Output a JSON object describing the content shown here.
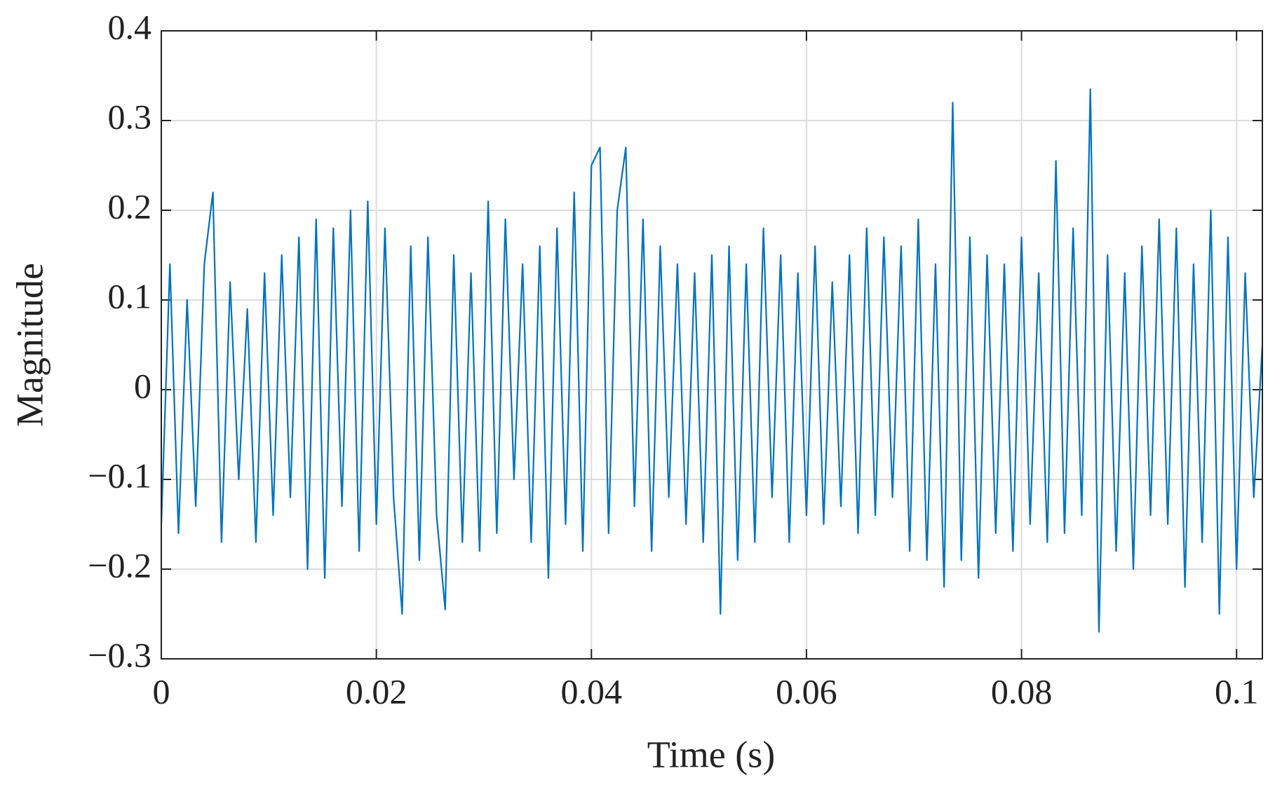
{
  "chart_data": {
    "type": "line",
    "xlabel": "Time (s)",
    "ylabel": "Magnitude",
    "x": [
      0,
      0.0008,
      0.0016,
      0.0024,
      0.0032,
      0.004,
      0.0048,
      0.0056,
      0.0064,
      0.0072,
      0.008,
      0.0088,
      0.0096,
      0.0104,
      0.0112,
      0.012,
      0.0128,
      0.0136,
      0.0144,
      0.0152,
      0.016,
      0.0168,
      0.0176,
      0.0184,
      0.0192,
      0.02,
      0.0208,
      0.0216,
      0.0224,
      0.0232,
      0.024,
      0.0248,
      0.0256,
      0.0264,
      0.0272,
      0.028,
      0.0288,
      0.0296,
      0.0304,
      0.0312,
      0.032,
      0.0328,
      0.0336,
      0.0344,
      0.0352,
      0.036,
      0.0368,
      0.0376,
      0.0384,
      0.0392,
      0.04,
      0.0408,
      0.0416,
      0.0424,
      0.0432,
      0.044,
      0.0448,
      0.0456,
      0.0464,
      0.0472,
      0.048,
      0.0488,
      0.0496,
      0.0504,
      0.0512,
      0.052,
      0.0528,
      0.0536,
      0.0544,
      0.0552,
      0.056,
      0.0568,
      0.0576,
      0.0584,
      0.0592,
      0.06,
      0.0608,
      0.0616,
      0.0624,
      0.0632,
      0.064,
      0.0648,
      0.0656,
      0.0664,
      0.0672,
      0.068,
      0.0688,
      0.0696,
      0.0704,
      0.0712,
      0.072,
      0.0728,
      0.0736,
      0.0744,
      0.0752,
      0.076,
      0.0768,
      0.0776,
      0.0784,
      0.0792,
      0.08,
      0.0808,
      0.0816,
      0.0824,
      0.0832,
      0.084,
      0.0848,
      0.0856,
      0.0864,
      0.0872,
      0.088,
      0.0888,
      0.0896,
      0.0904,
      0.0912,
      0.092,
      0.0928,
      0.0936,
      0.0944,
      0.0952,
      0.096,
      0.0968,
      0.0976,
      0.0984,
      0.0992,
      0.1,
      0.1008,
      0.1016,
      0.1024
    ],
    "series": [
      {
        "color": "#0072bd",
        "values": [
          -0.15,
          0.14,
          -0.16,
          0.1,
          -0.13,
          0.14,
          0.22,
          -0.17,
          0.12,
          -0.1,
          0.09,
          -0.17,
          0.13,
          -0.14,
          0.15,
          -0.12,
          0.17,
          -0.2,
          0.19,
          -0.21,
          0.18,
          -0.13,
          0.2,
          -0.18,
          0.21,
          -0.15,
          0.18,
          -0.12,
          -0.25,
          0.16,
          -0.19,
          0.17,
          -0.14,
          -0.245,
          0.15,
          -0.17,
          0.13,
          -0.18,
          0.21,
          -0.16,
          0.19,
          -0.1,
          0.14,
          -0.17,
          0.16,
          -0.21,
          0.18,
          -0.15,
          0.22,
          -0.18,
          0.25,
          0.27,
          -0.16,
          0.2,
          0.27,
          -0.13,
          0.19,
          -0.18,
          0.16,
          -0.12,
          0.14,
          -0.15,
          0.13,
          -0.17,
          0.15,
          -0.25,
          0.16,
          -0.19,
          0.14,
          -0.17,
          0.18,
          -0.12,
          0.15,
          -0.17,
          0.13,
          -0.14,
          0.16,
          -0.15,
          0.12,
          -0.13,
          0.15,
          -0.16,
          0.18,
          -0.14,
          0.17,
          -0.12,
          0.16,
          -0.18,
          0.19,
          -0.19,
          0.14,
          -0.22,
          0.32,
          -0.19,
          0.17,
          -0.21,
          0.15,
          -0.16,
          0.14,
          -0.18,
          0.17,
          -0.15,
          0.13,
          -0.17,
          0.255,
          -0.16,
          0.18,
          -0.14,
          0.335,
          -0.27,
          0.15,
          -0.18,
          0.13,
          -0.2,
          0.16,
          -0.14,
          0.19,
          -0.15,
          0.18,
          -0.22,
          0.14,
          -0.17,
          0.2,
          -0.25,
          0.17,
          -0.2,
          0.13,
          -0.12,
          0.05
        ]
      }
    ],
    "xlim": [
      0,
      0.1024
    ],
    "ylim": [
      -0.3,
      0.4
    ],
    "xticks": [
      0,
      0.02,
      0.04,
      0.06,
      0.08,
      0.1
    ],
    "yticks": [
      {
        "value": -0.3,
        "label": "−0.3"
      },
      {
        "value": -0.2,
        "label": "−0.2"
      },
      {
        "value": -0.1,
        "label": "−0.1"
      },
      0,
      0.1,
      0.2,
      0.3,
      0.4
    ],
    "grid": true
  }
}
